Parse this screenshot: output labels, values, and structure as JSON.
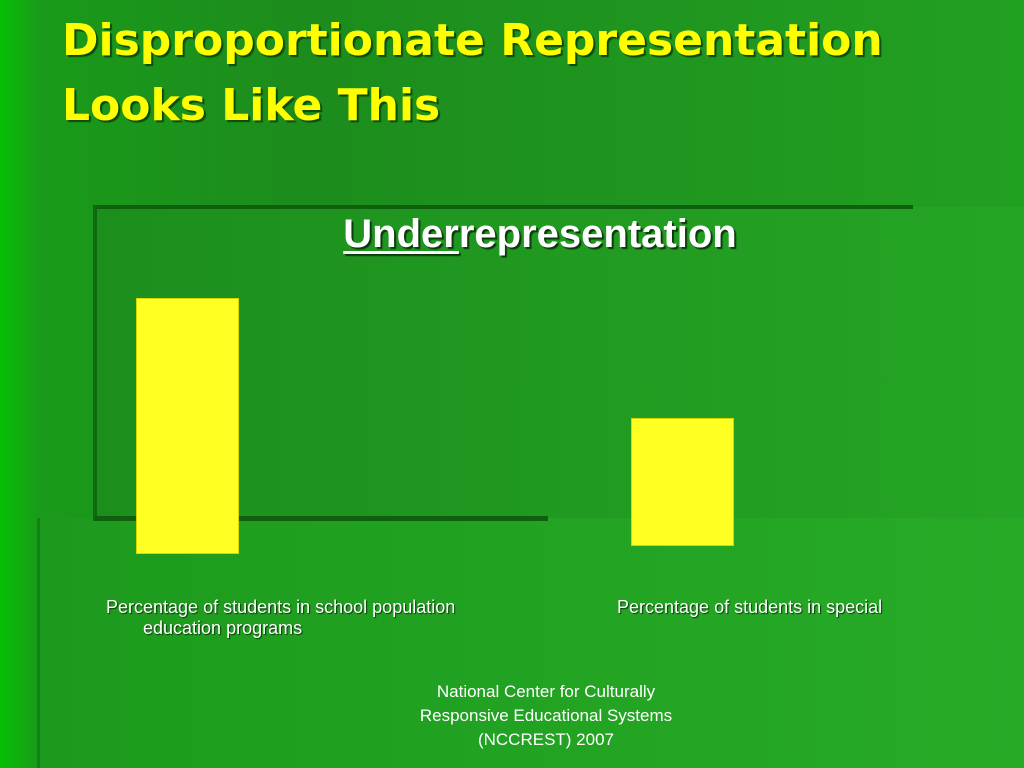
{
  "slide": {
    "title": "Disproportionate Representation Looks Like This",
    "subtitle": {
      "emphasis": "Under",
      "rest": "representation"
    },
    "labels": [
      "Percentage of students in school population",
      "Percentage of students in special",
      "education programs"
    ],
    "footer": [
      "National Center for Culturally",
      "Responsive Educational Systems",
      "(NCCREST) 2007"
    ]
  }
}
